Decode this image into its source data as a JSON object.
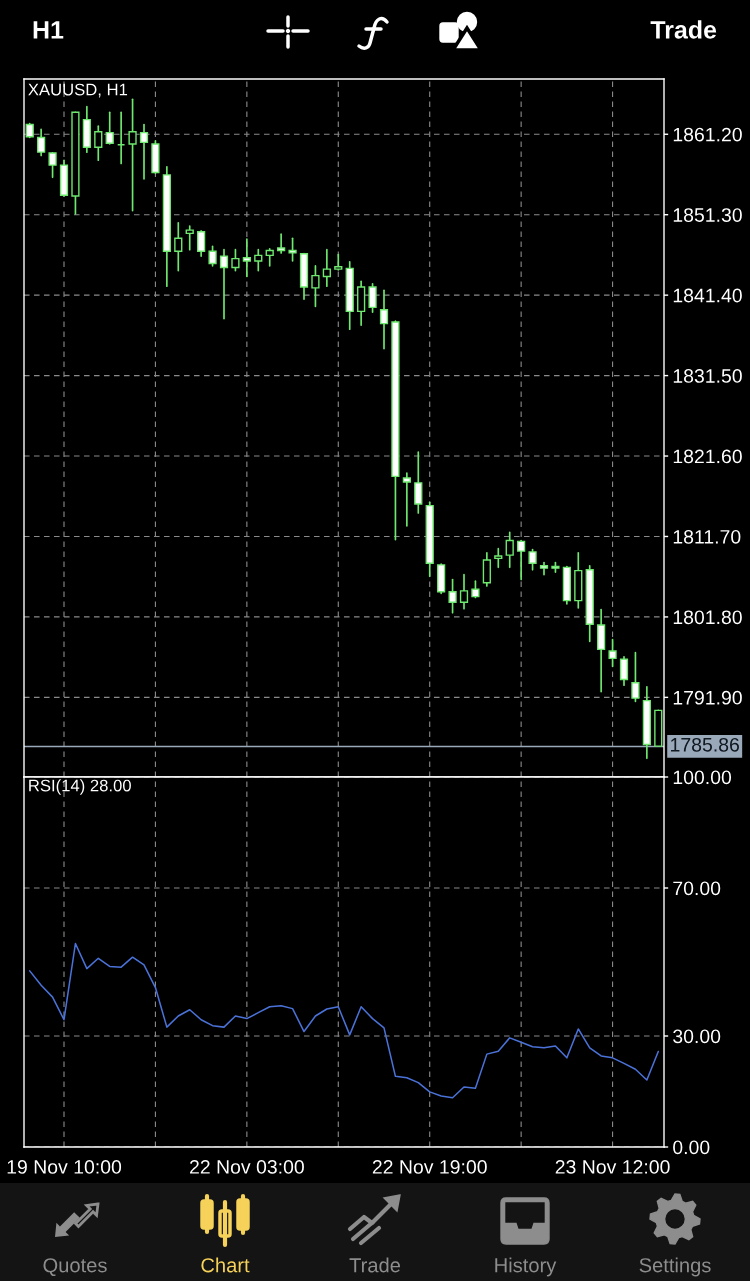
{
  "chart_data": [
    {
      "type": "other",
      "annotations": [
        "H1",
        "Trade"
      ]
    },
    {
      "type": "candlestick",
      "title": "XAUUSD, H1",
      "categories": [
        null,
        null,
        null,
        null,
        null,
        null,
        null,
        null,
        null,
        null,
        null,
        null,
        null,
        null,
        null,
        null,
        null,
        null,
        null,
        null,
        null,
        null,
        null,
        null,
        null,
        null,
        null,
        null,
        null,
        null,
        null,
        null,
        null,
        null,
        null,
        null,
        null,
        null,
        null,
        null,
        null,
        null,
        null,
        null,
        null,
        null,
        null,
        null,
        null,
        null,
        null,
        null,
        null,
        null,
        null,
        null
      ],
      "ohlc": [
        [
          1862.4,
          1862.5,
          1860.8,
          1860.9
        ],
        [
          1860.8,
          1861.8,
          1858.6,
          1859.0
        ],
        [
          1858.9,
          1858.9,
          1855.9,
          1857.4
        ],
        [
          1857.4,
          1858.0,
          1853.6,
          1853.7
        ],
        [
          1853.6,
          1863.9,
          1851.4,
          1863.9
        ],
        [
          1863.0,
          1864.6,
          1859.0,
          1859.6
        ],
        [
          1859.6,
          1862.2,
          1858.0,
          1861.5
        ],
        [
          1861.4,
          1863.9,
          1860.0,
          1860.1
        ],
        [
          1859.9,
          1863.9,
          1857.6,
          1859.9
        ],
        [
          1860.0,
          1865.5,
          1851.8,
          1861.5
        ],
        [
          1861.4,
          1862.4,
          1855.7,
          1860.2
        ],
        [
          1860.0,
          1860.4,
          1856.4,
          1856.5
        ],
        [
          1856.2,
          1857.2,
          1842.5,
          1846.8
        ],
        [
          1846.8,
          1850.3,
          1844.4,
          1848.4
        ],
        [
          1849.0,
          1849.9,
          1847.0,
          1849.4
        ],
        [
          1849.2,
          1849.3,
          1846.2,
          1846.8
        ],
        [
          1846.8,
          1847.4,
          1845.0,
          1845.3
        ],
        [
          1846.2,
          1847.0,
          1838.5,
          1844.8
        ],
        [
          1844.8,
          1847.0,
          1844.4,
          1845.9
        ],
        [
          1846.0,
          1848.3,
          1843.7,
          1845.6
        ],
        [
          1845.6,
          1847.0,
          1844.4,
          1846.3
        ],
        [
          1846.3,
          1847.1,
          1845.0,
          1846.9
        ],
        [
          1847.2,
          1848.9,
          1846.6,
          1846.9
        ],
        [
          1846.9,
          1848.4,
          1845.6,
          1846.6
        ],
        [
          1846.5,
          1846.5,
          1840.9,
          1842.4
        ],
        [
          1842.3,
          1845.0,
          1840.0,
          1843.8
        ],
        [
          1843.7,
          1847.0,
          1842.5,
          1844.6
        ],
        [
          1844.6,
          1846.4,
          1844.5,
          1844.9
        ],
        [
          1844.7,
          1845.5,
          1837.2,
          1839.4
        ],
        [
          1839.4,
          1843.1,
          1837.7,
          1842.4
        ],
        [
          1842.4,
          1842.8,
          1839.3,
          1839.9
        ],
        [
          1839.6,
          1842.0,
          1834.8,
          1837.9
        ],
        [
          1838.1,
          1838.2,
          1811.3,
          1819.1
        ],
        [
          1818.9,
          1819.5,
          1813.0,
          1818.4
        ],
        [
          1818.3,
          1822.1,
          1814.6,
          1815.7
        ],
        [
          1815.5,
          1815.9,
          1806.8,
          1808.4
        ],
        [
          1808.2,
          1808.3,
          1804.7,
          1804.9
        ],
        [
          1804.9,
          1806.4,
          1802.3,
          1803.6
        ],
        [
          1803.6,
          1807.0,
          1802.8,
          1805.0
        ],
        [
          1805.2,
          1806.2,
          1804.2,
          1804.3
        ],
        [
          1806.0,
          1809.7,
          1805.6,
          1808.8
        ],
        [
          1809.0,
          1810.2,
          1807.9,
          1809.3
        ],
        [
          1809.4,
          1812.2,
          1807.9,
          1811.2
        ],
        [
          1811.1,
          1811.2,
          1806.4,
          1809.9
        ],
        [
          1809.8,
          1810.1,
          1807.6,
          1808.4
        ],
        [
          1808.1,
          1808.5,
          1807.0,
          1807.8
        ],
        [
          1808.0,
          1808.5,
          1807.3,
          1807.8
        ],
        [
          1807.9,
          1808.0,
          1803.4,
          1803.8
        ],
        [
          1803.8,
          1809.7,
          1802.9,
          1807.5
        ],
        [
          1807.6,
          1808.1,
          1798.8,
          1800.9
        ],
        [
          1800.8,
          1802.7,
          1792.6,
          1797.8
        ],
        [
          1797.6,
          1799.0,
          1795.7,
          1796.7
        ],
        [
          1796.6,
          1796.9,
          1793.4,
          1794.1
        ],
        [
          1793.7,
          1797.4,
          1791.4,
          1791.8
        ],
        [
          1791.5,
          1793.2,
          1784.4,
          1786.1
        ],
        [
          1785.9,
          1790.3,
          1785.9,
          1790.3
        ]
      ],
      "color": "#6ee86e",
      "colors": [
        "#ffffff",
        "#ffffff",
        "#ffffff",
        "#ffffff",
        "#000000",
        "#ffffff",
        "#000000",
        "#ffffff",
        "#6ee86e",
        "#000000",
        "#ffffff",
        "#ffffff",
        "#ffffff",
        "#000000",
        "#000000",
        "#ffffff",
        "#ffffff",
        "#ffffff",
        "#000000",
        "#ffffff",
        "#000000",
        "#000000",
        "#ffffff",
        "#ffffff",
        "#ffffff",
        "#000000",
        "#000000",
        "#000000",
        "#ffffff",
        "#000000",
        "#ffffff",
        "#ffffff",
        "#ffffff",
        "#ffffff",
        "#ffffff",
        "#ffffff",
        "#ffffff",
        "#ffffff",
        "#000000",
        "#ffffff",
        "#000000",
        "#000000",
        "#000000",
        "#ffffff",
        "#ffffff",
        "#ffffff",
        "#ffffff",
        "#ffffff",
        "#000000",
        "#ffffff",
        "#ffffff",
        "#ffffff",
        "#ffffff",
        "#ffffff",
        "#ffffff",
        "#000000"
      ],
      "ylim": [
        1782.1,
        1868.0
      ],
      "yticks": [
        {
          "value": 1861.2,
          "label": "1861.20"
        },
        {
          "value": 1851.3,
          "label": "1851.30"
        },
        {
          "value": 1841.4,
          "label": "1841.40"
        },
        {
          "value": 1831.5,
          "label": "1831.50"
        },
        {
          "value": 1821.6,
          "label": "1821.60"
        },
        {
          "value": 1811.7,
          "label": "1811.70"
        },
        {
          "value": 1801.8,
          "label": "1801.80"
        },
        {
          "value": 1791.9,
          "label": "1791.90"
        }
      ],
      "ref_lines": [
        {
          "axis": "y",
          "value": 1785.86,
          "label": "1785.86",
          "color": "#9aa9ba"
        }
      ],
      "grid": true
    },
    {
      "type": "line",
      "title": "RSI(14) 28.00",
      "categories": [
        null,
        null,
        null,
        "19 Nov 10:00",
        null,
        null,
        null,
        null,
        null,
        null,
        null,
        null,
        null,
        null,
        null,
        null,
        null,
        null,
        null,
        "22 Nov 03:00",
        null,
        null,
        null,
        null,
        null,
        null,
        null,
        null,
        null,
        null,
        null,
        null,
        null,
        null,
        null,
        "22 Nov 19:00",
        null,
        null,
        null,
        null,
        null,
        null,
        null,
        null,
        null,
        null,
        null,
        null,
        null,
        null,
        null,
        "23 Nov 12:00",
        null,
        null,
        null,
        null
      ],
      "series": [
        {
          "color": "#4a72d8",
          "values": [
            47.6,
            43.7,
            40.5,
            34.4,
            55.0,
            48.2,
            51.0,
            48.8,
            48.6,
            51.3,
            49.2,
            43.1,
            32.4,
            35.4,
            37.1,
            34.4,
            32.8,
            32.4,
            35.4,
            34.7,
            36.3,
            37.9,
            38.2,
            37.4,
            31.2,
            35.4,
            37.3,
            37.9,
            30.3,
            37.9,
            34.7,
            32.2,
            19.1,
            18.7,
            17.4,
            14.9,
            13.8,
            13.3,
            16.2,
            15.9,
            25.1,
            25.9,
            29.5,
            28.3,
            27.1,
            26.8,
            27.3,
            24.1,
            31.9,
            26.8,
            24.6,
            24.1,
            22.6,
            21.0,
            18.1,
            25.8
          ]
        }
      ],
      "ylim": [
        0,
        100
      ],
      "yticks": [
        {
          "value": 0,
          "label": "0.00"
        },
        {
          "value": 30,
          "label": "30.00"
        },
        {
          "value": 70,
          "label": "70.00"
        },
        {
          "value": 100,
          "label": "100.00"
        }
      ],
      "grid": true
    },
    {
      "type": "other",
      "annotations": [
        "Quotes",
        "Chart",
        "Trade",
        "History",
        "Settings"
      ]
    }
  ]
}
